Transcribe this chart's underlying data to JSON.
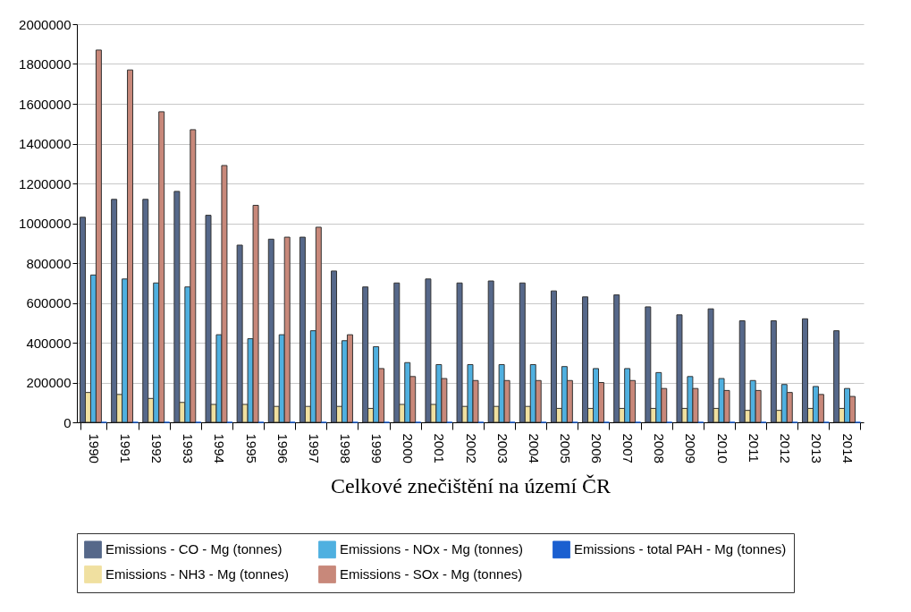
{
  "chart_data": {
    "type": "bar",
    "xlabel": "Celkové znečištění na území ČR",
    "categories": [
      "1990",
      "1991",
      "1992",
      "1993",
      "1994",
      "1995",
      "1996",
      "1997",
      "1998",
      "1999",
      "2000",
      "2001",
      "2002",
      "2003",
      "2004",
      "2005",
      "2006",
      "2007",
      "2008",
      "2009",
      "2010",
      "2011",
      "2012",
      "2013",
      "2014"
    ],
    "series": [
      {
        "name": "Emissions - CO - Mg (tonnes)",
        "color": "#56688a",
        "values": [
          1030000,
          1120000,
          1120000,
          1160000,
          1040000,
          890000,
          920000,
          930000,
          760000,
          680000,
          700000,
          720000,
          700000,
          710000,
          700000,
          660000,
          630000,
          640000,
          580000,
          540000,
          570000,
          510000,
          510000,
          520000,
          460000
        ]
      },
      {
        "name": "Emissions - NH3 - Mg (tonnes)",
        "color": "#f0e0a0",
        "values": [
          150000,
          140000,
          120000,
          100000,
          90000,
          90000,
          80000,
          80000,
          80000,
          70000,
          90000,
          90000,
          80000,
          80000,
          80000,
          70000,
          70000,
          70000,
          70000,
          70000,
          70000,
          60000,
          60000,
          70000,
          70000
        ]
      },
      {
        "name": "Emissions - NOx - Mg (tonnes)",
        "color": "#4fb0e0",
        "values": [
          740000,
          720000,
          700000,
          680000,
          440000,
          420000,
          440000,
          460000,
          410000,
          380000,
          300000,
          290000,
          290000,
          290000,
          290000,
          280000,
          270000,
          270000,
          250000,
          230000,
          220000,
          210000,
          190000,
          180000,
          170000
        ]
      },
      {
        "name": "Emissions - SOx - Mg (tonnes)",
        "color": "#c8887a",
        "values": [
          1870000,
          1770000,
          1560000,
          1470000,
          1290000,
          1090000,
          930000,
          980000,
          440000,
          270000,
          230000,
          220000,
          210000,
          210000,
          210000,
          210000,
          200000,
          210000,
          170000,
          170000,
          160000,
          160000,
          150000,
          140000,
          130000
        ]
      },
      {
        "name": "Emissions - total PAH - Mg (tonnes)",
        "color": "#1a5fd0",
        "values": [
          0,
          0,
          0,
          0,
          0,
          0,
          0,
          0,
          0,
          0,
          0,
          0,
          0,
          0,
          0,
          0,
          0,
          0,
          0,
          0,
          0,
          0,
          0,
          0,
          0
        ]
      }
    ],
    "ylim": [
      0,
      2000000
    ],
    "yticks": [
      0,
      200000,
      400000,
      600000,
      800000,
      1000000,
      1200000,
      1400000,
      1600000,
      1800000,
      2000000
    ],
    "grid": "y",
    "legend": "bottom"
  }
}
